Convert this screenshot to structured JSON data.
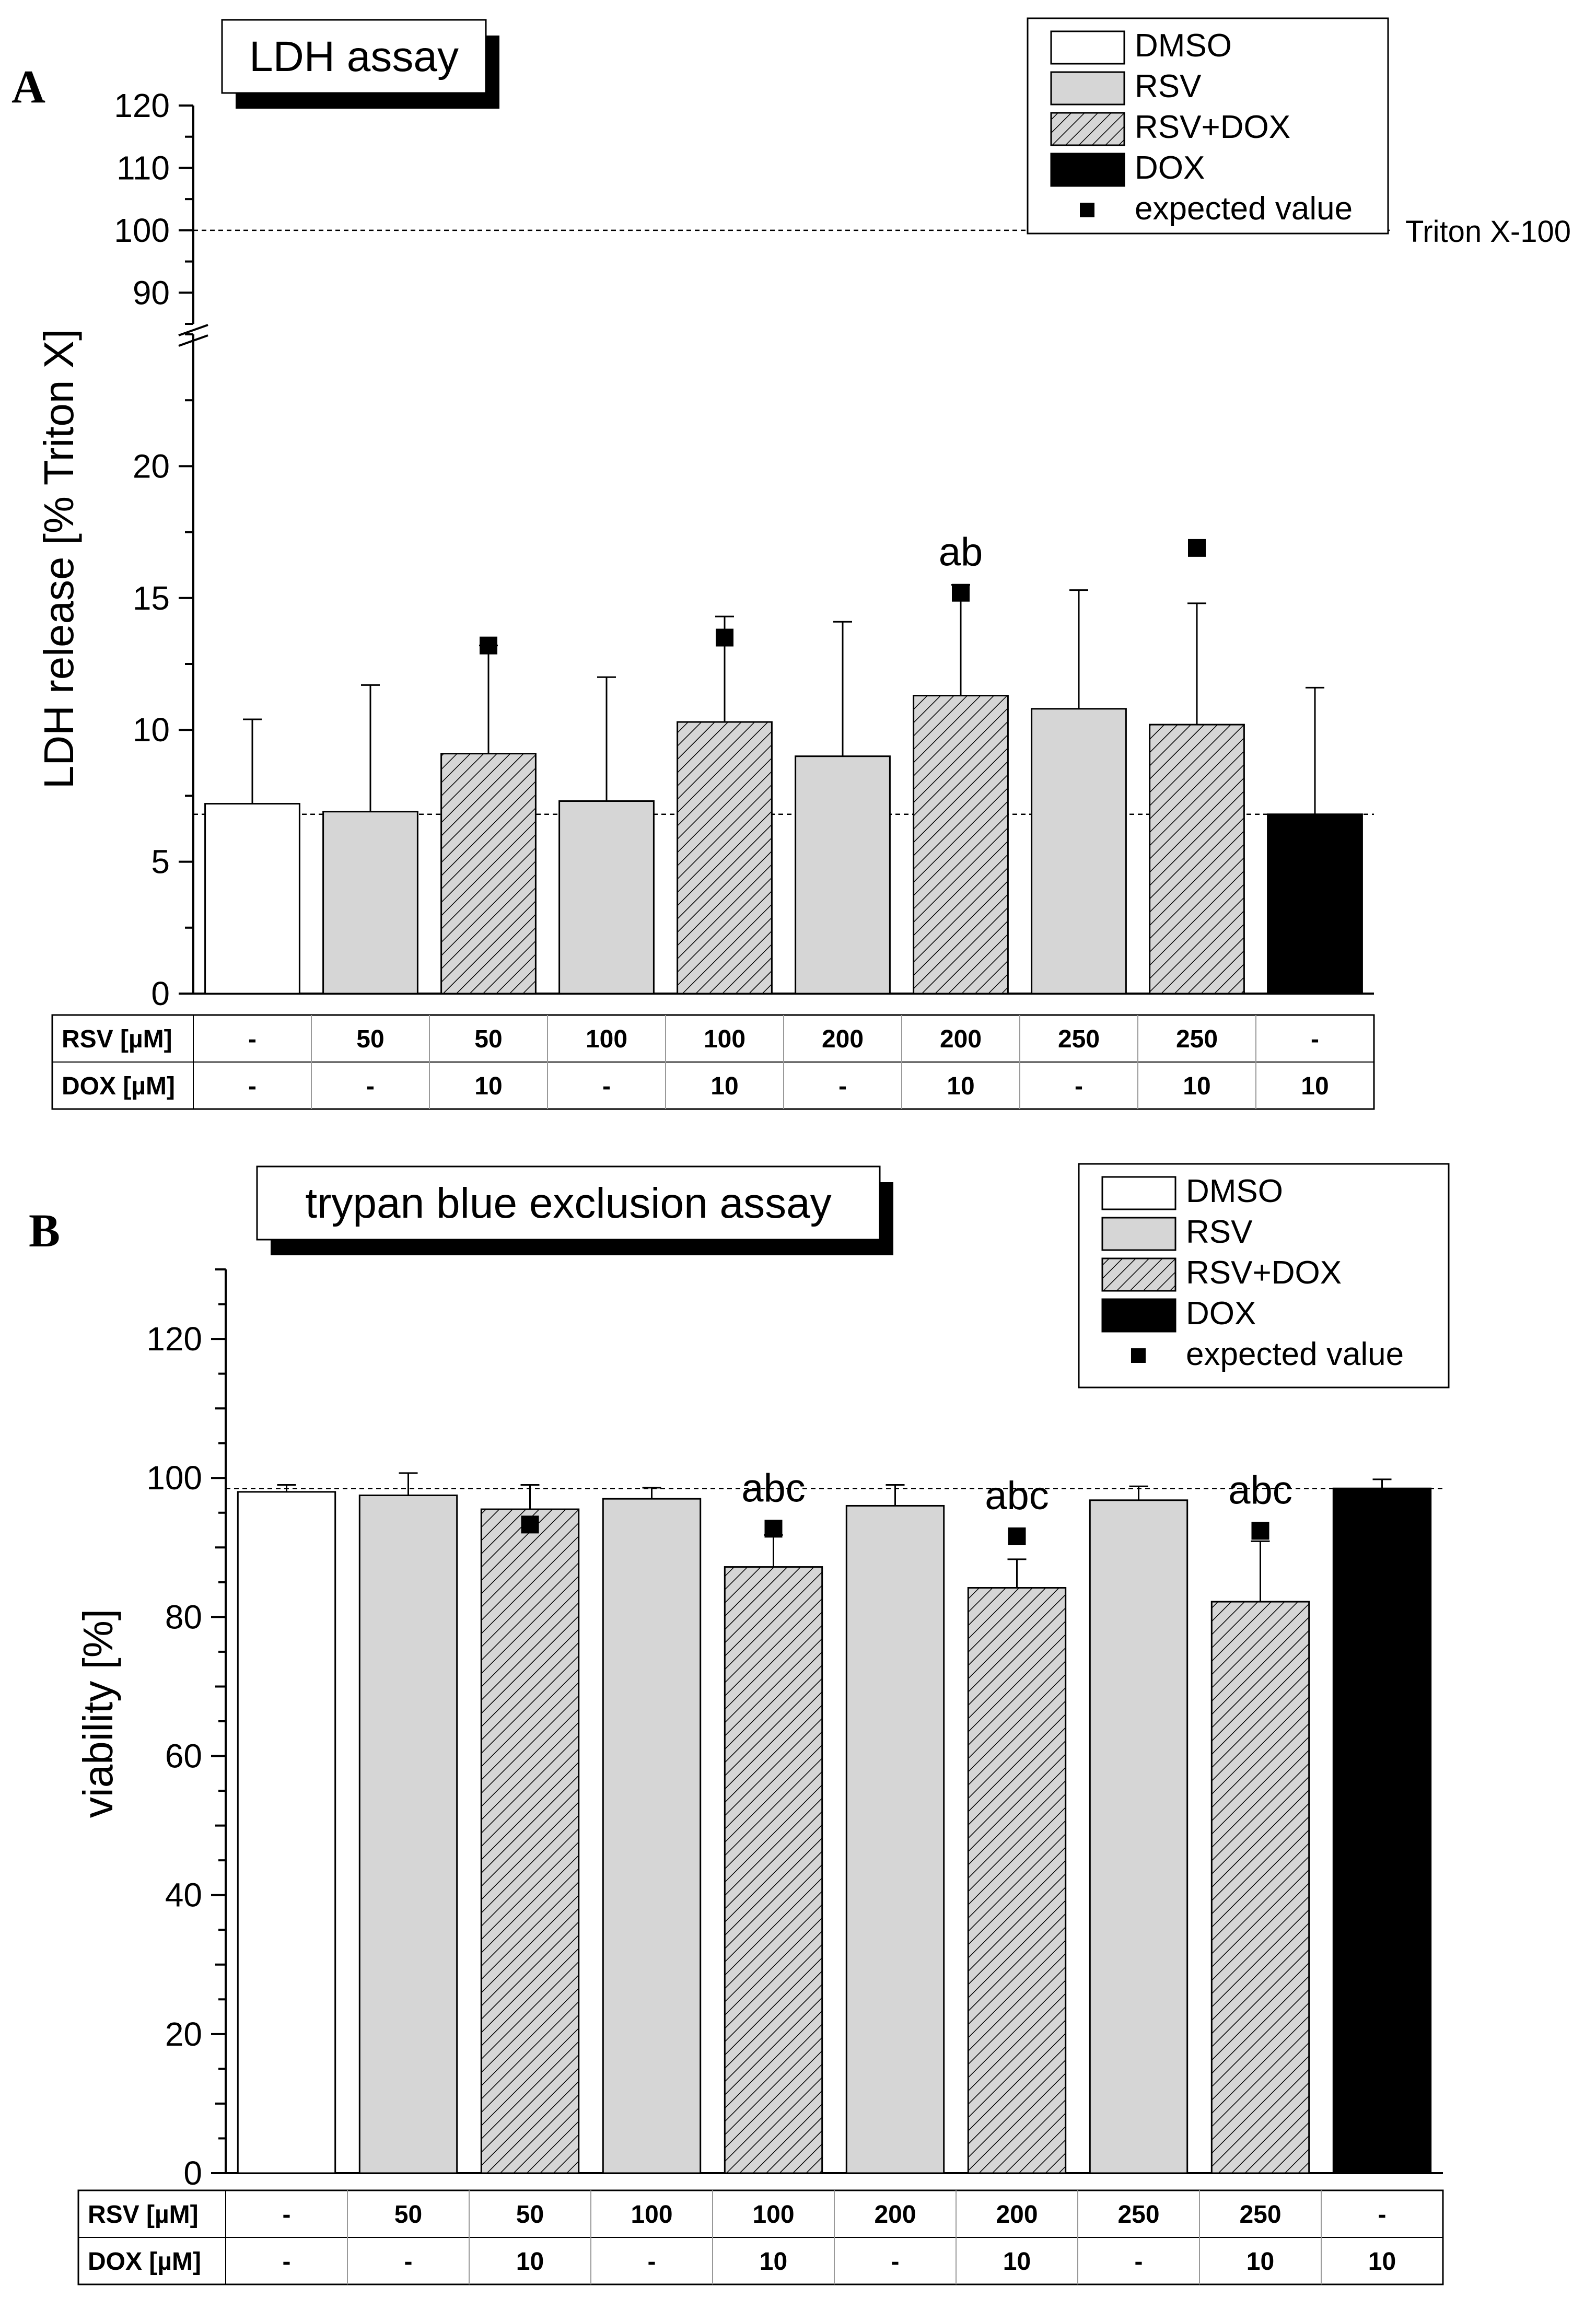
{
  "figure_panels": [
    "A",
    "B"
  ],
  "chart_data": [
    {
      "panel": "A",
      "type": "bar",
      "title": "LDH assay",
      "ylabel": "LDH release [% Triton X]",
      "ylim": [
        0,
        120
      ],
      "axis_break": [
        25,
        85
      ],
      "yticks_lower": [
        0,
        5,
        10,
        15,
        20
      ],
      "yticks_upper": [
        90,
        100,
        110,
        120
      ],
      "reference_lines": [
        {
          "value": 100,
          "label": "Triton X-100"
        },
        {
          "value": 6.8,
          "label": ""
        }
      ],
      "legend": [
        {
          "label": "DMSO",
          "style": "white"
        },
        {
          "label": "RSV",
          "style": "gray"
        },
        {
          "label": "RSV+DOX",
          "style": "hatched"
        },
        {
          "label": "DOX",
          "style": "black"
        },
        {
          "label": "expected value",
          "style": "marker"
        }
      ],
      "legend_position": "top-right",
      "categories": [
        "DMSO",
        "RSV 50",
        "RSV 50 + DOX 10",
        "RSV 100",
        "RSV 100 + DOX 10",
        "RSV 200",
        "RSV 200 + DOX 10",
        "RSV 250",
        "RSV 250 + DOX 10",
        "DOX 10"
      ],
      "styles": [
        "white",
        "gray",
        "hatched",
        "gray",
        "hatched",
        "gray",
        "hatched",
        "gray",
        "hatched",
        "black"
      ],
      "values": [
        7.2,
        6.9,
        9.1,
        7.3,
        10.3,
        9.0,
        11.3,
        10.8,
        10.2,
        6.8
      ],
      "error_plus": [
        3.2,
        4.8,
        4.1,
        4.7,
        4.0,
        5.1,
        4.2,
        4.5,
        4.6,
        4.8
      ],
      "expected": [
        null,
        null,
        13.2,
        null,
        13.5,
        null,
        15.2,
        null,
        16.9,
        null
      ],
      "annotations": [
        "",
        "",
        "",
        "",
        "",
        "",
        "ab",
        "",
        "",
        ""
      ],
      "table": {
        "rows": [
          {
            "label": "RSV [µM]",
            "cells": [
              "-",
              "50",
              "50",
              "100",
              "100",
              "200",
              "200",
              "250",
              "250",
              "-"
            ]
          },
          {
            "label": "DOX [µM]",
            "cells": [
              "-",
              "-",
              "10",
              "-",
              "10",
              "-",
              "10",
              "-",
              "10",
              "10"
            ]
          }
        ]
      }
    },
    {
      "panel": "B",
      "type": "bar",
      "title": "trypan blue exclusion assay",
      "ylabel": "viability [%]",
      "ylim": [
        0,
        130
      ],
      "yticks": [
        0,
        20,
        40,
        60,
        80,
        100,
        120
      ],
      "reference_lines": [
        {
          "value": 98.5,
          "label": ""
        }
      ],
      "legend": [
        {
          "label": "DMSO",
          "style": "white"
        },
        {
          "label": "RSV",
          "style": "gray"
        },
        {
          "label": "RSV+DOX",
          "style": "hatched"
        },
        {
          "label": "DOX",
          "style": "black"
        },
        {
          "label": "expected value",
          "style": "marker"
        }
      ],
      "legend_position": "top-right",
      "categories": [
        "DMSO",
        "RSV 50",
        "RSV 50 + DOX 10",
        "RSV 100",
        "RSV 100 + DOX 10",
        "RSV 200",
        "RSV 200 + DOX 10",
        "RSV 250",
        "RSV 250 + DOX 10",
        "DOX 10"
      ],
      "styles": [
        "white",
        "gray",
        "hatched",
        "gray",
        "hatched",
        "gray",
        "hatched",
        "gray",
        "hatched",
        "black"
      ],
      "values": [
        98.0,
        97.5,
        95.5,
        97.0,
        87.2,
        96.0,
        84.2,
        96.8,
        82.2,
        98.5
      ],
      "error_plus": [
        1.0,
        3.2,
        3.5,
        1.6,
        4.6,
        3.0,
        4.1,
        2.0,
        8.7,
        1.3
      ],
      "expected": [
        null,
        null,
        93.3,
        null,
        92.7,
        null,
        91.6,
        null,
        92.4,
        null
      ],
      "annotations": [
        "",
        "",
        "",
        "",
        "abc",
        "",
        "abc",
        "",
        "abc",
        ""
      ],
      "table": {
        "rows": [
          {
            "label": "RSV [µM]",
            "cells": [
              "-",
              "50",
              "50",
              "100",
              "100",
              "200",
              "200",
              "250",
              "250",
              "-"
            ]
          },
          {
            "label": "DOX [µM]",
            "cells": [
              "-",
              "-",
              "10",
              "-",
              "10",
              "-",
              "10",
              "-",
              "10",
              "10"
            ]
          }
        ]
      }
    }
  ]
}
